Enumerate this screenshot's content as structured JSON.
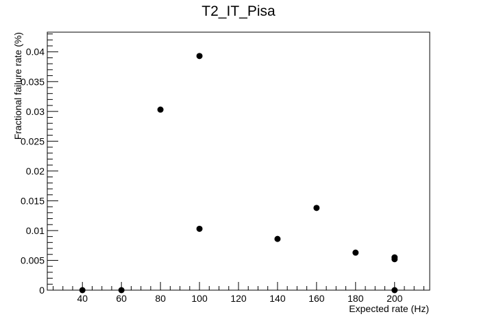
{
  "chart_data": {
    "type": "scatter",
    "title": "T2_IT_Pisa",
    "xlabel": "Expected rate (Hz)",
    "ylabel": "Fractional failure rate (%)",
    "xlim": [
      22,
      218
    ],
    "ylim": [
      0,
      0.0433
    ],
    "x_ticks": [
      40,
      60,
      80,
      100,
      120,
      140,
      160,
      180,
      200
    ],
    "x_tick_labels": [
      "40",
      "60",
      "80",
      "100",
      "120",
      "140",
      "160",
      "180",
      "200"
    ],
    "y_ticks": [
      0,
      0.005,
      0.01,
      0.015,
      0.02,
      0.025,
      0.03,
      0.035,
      0.04
    ],
    "y_tick_labels": [
      "0",
      "0.005",
      "0.01",
      "0.015",
      "0.02",
      "0.025",
      "0.03",
      "0.035",
      "0.04"
    ],
    "grid": false,
    "marker_color": "#000000",
    "points": [
      {
        "x": 40,
        "y": 0
      },
      {
        "x": 60,
        "y": 0
      },
      {
        "x": 80,
        "y": 0.0303
      },
      {
        "x": 100,
        "y": 0.0393
      },
      {
        "x": 100,
        "y": 0.0103
      },
      {
        "x": 140,
        "y": 0.0086
      },
      {
        "x": 160,
        "y": 0.0138
      },
      {
        "x": 180,
        "y": 0.0063
      },
      {
        "x": 200,
        "y": 0.0055
      },
      {
        "x": 200,
        "y": 0.0052
      },
      {
        "x": 200,
        "y": 0
      }
    ]
  }
}
